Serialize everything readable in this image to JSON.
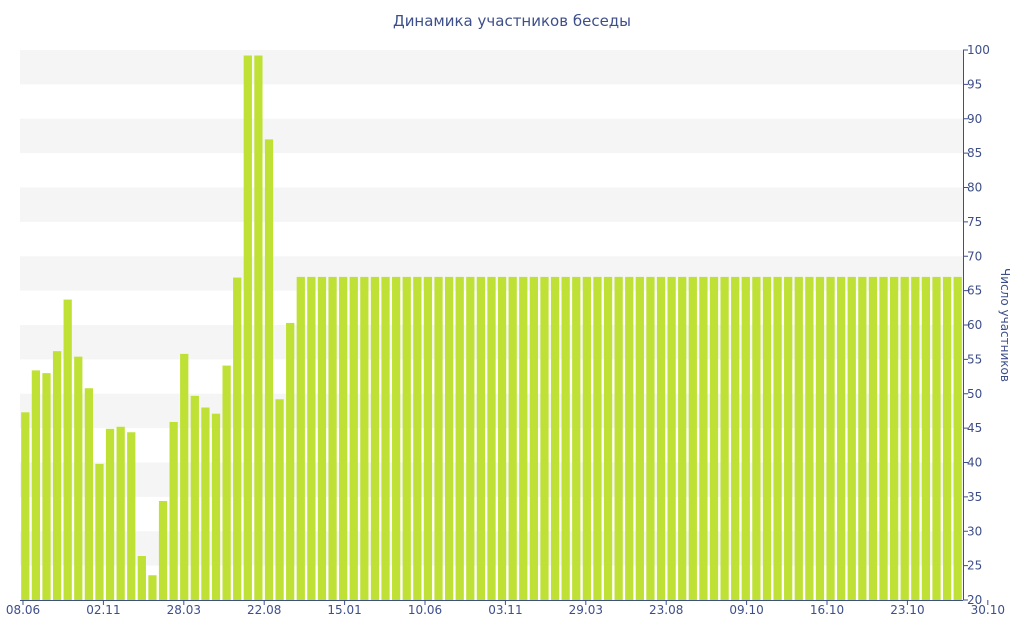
{
  "colors": {
    "bar": "#bfe136",
    "text": "#3d4f8a",
    "axis": "#3d4f8a",
    "band": "#f5f5f5"
  },
  "chart_data": {
    "type": "bar",
    "title": "Динамика участников беседы",
    "xlabel": "",
    "ylabel": "Число участников",
    "ylim": [
      20,
      100
    ],
    "y_axis_position": "right",
    "grid": "alternating horizontal bands",
    "x_tick_labels": [
      "08.06",
      "02.11",
      "28.03",
      "22.08",
      "15.01",
      "10.06",
      "03.11",
      "29.03",
      "23.08",
      "09.10",
      "16.10",
      "23.10",
      "30.10"
    ],
    "y_ticks": [
      20,
      25,
      30,
      35,
      40,
      45,
      50,
      55,
      60,
      65,
      70,
      75,
      80,
      85,
      90,
      95,
      100
    ],
    "values": [
      47.3,
      53.4,
      53.0,
      56.2,
      63.7,
      55.4,
      50.8,
      39.8,
      44.9,
      45.2,
      44.4,
      26.4,
      23.6,
      34.4,
      45.9,
      55.8,
      49.7,
      48.0,
      47.1,
      54.1,
      66.9,
      99.2,
      99.2,
      87.0,
      49.2,
      60.3,
      67,
      67,
      67,
      67,
      67,
      67,
      67,
      67,
      67,
      67,
      67,
      67,
      67,
      67,
      67,
      67,
      67,
      67,
      67,
      67,
      67,
      67,
      67,
      67,
      67,
      67,
      67,
      67,
      67,
      67,
      67,
      67,
      67,
      67,
      67,
      67,
      67,
      67,
      67,
      67,
      67,
      67,
      67,
      67,
      67,
      67,
      67,
      67,
      67,
      67,
      67,
      67,
      67,
      67,
      67,
      67,
      67,
      67,
      67,
      67,
      67,
      67,
      67
    ]
  }
}
